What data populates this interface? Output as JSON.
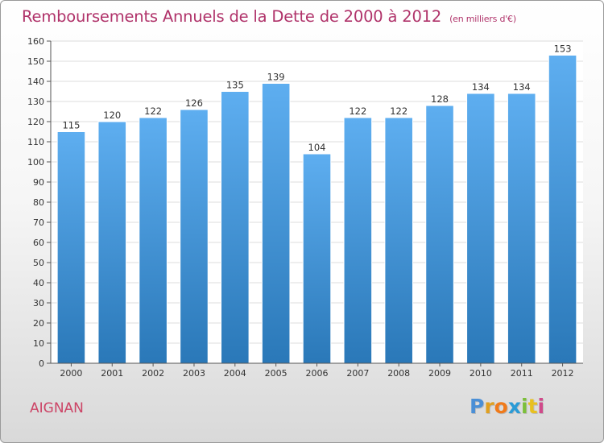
{
  "title": "Remboursements Annuels de la Dette de 2000 à 2012",
  "subtitle": "(en milliers d'€)",
  "commune": "AIGNAN",
  "brand": {
    "letters": [
      "P",
      "r",
      "o",
      "x",
      "i",
      "t",
      "i"
    ],
    "colors": [
      "#4a8fd6",
      "#e0a020",
      "#f07a1a",
      "#2a9bd6",
      "#7cbf3a",
      "#e8c020",
      "#d04a8a"
    ]
  },
  "colors": {
    "bar_top": "#5eaef0",
    "bar_bottom": "#2a78b8",
    "grid": "#dddddd",
    "axis_text": "#333333"
  },
  "chart_data": {
    "type": "bar",
    "categories": [
      "2000",
      "2001",
      "2002",
      "2003",
      "2004",
      "2005",
      "2006",
      "2007",
      "2008",
      "2009",
      "2010",
      "2011",
      "2012"
    ],
    "values": [
      115,
      120,
      122,
      126,
      135,
      139,
      104,
      122,
      122,
      128,
      134,
      134,
      153
    ],
    "ylim": [
      0,
      160
    ],
    "yticks": [
      0,
      10,
      20,
      30,
      40,
      50,
      60,
      70,
      80,
      90,
      100,
      110,
      120,
      130,
      140,
      150,
      160
    ],
    "grid": true,
    "data_labels": true
  }
}
